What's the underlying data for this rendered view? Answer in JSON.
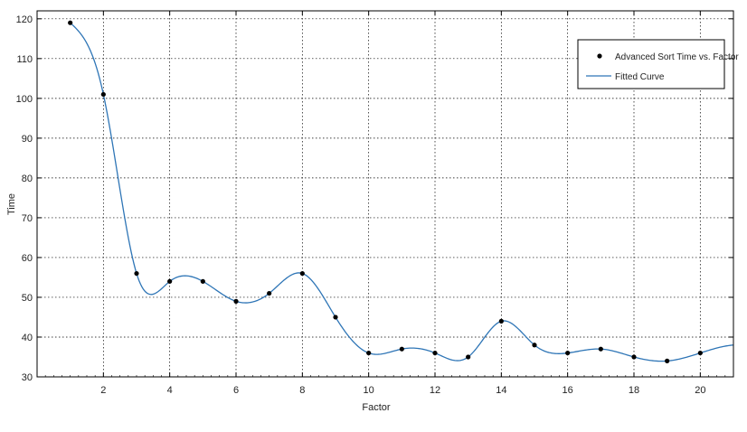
{
  "chart_data": {
    "type": "scatter",
    "title": "",
    "xlabel": "Factor",
    "ylabel": "Time",
    "xlim": [
      0,
      21
    ],
    "ylim": [
      30,
      122
    ],
    "grid": true,
    "legend_position": "top-right",
    "x_ticks": [
      2,
      4,
      6,
      8,
      10,
      12,
      14,
      16,
      18,
      20
    ],
    "y_ticks": [
      30,
      40,
      50,
      60,
      70,
      80,
      90,
      100,
      110,
      120
    ],
    "series": [
      {
        "name": "Advanced Sort Time vs. Factor",
        "kind": "points",
        "color": "#000000",
        "x": [
          1,
          2,
          3,
          4,
          5,
          6,
          7,
          8,
          9,
          10,
          11,
          12,
          13,
          14,
          15,
          16,
          17,
          18,
          19,
          20
        ],
        "y": [
          119,
          101,
          56,
          54,
          54,
          49,
          51,
          56,
          45,
          36,
          37,
          36,
          35,
          44,
          38,
          36,
          37,
          35,
          34,
          36
        ]
      },
      {
        "name": "Fitted Curve",
        "kind": "line",
        "color": "#2e75b6"
      }
    ]
  }
}
